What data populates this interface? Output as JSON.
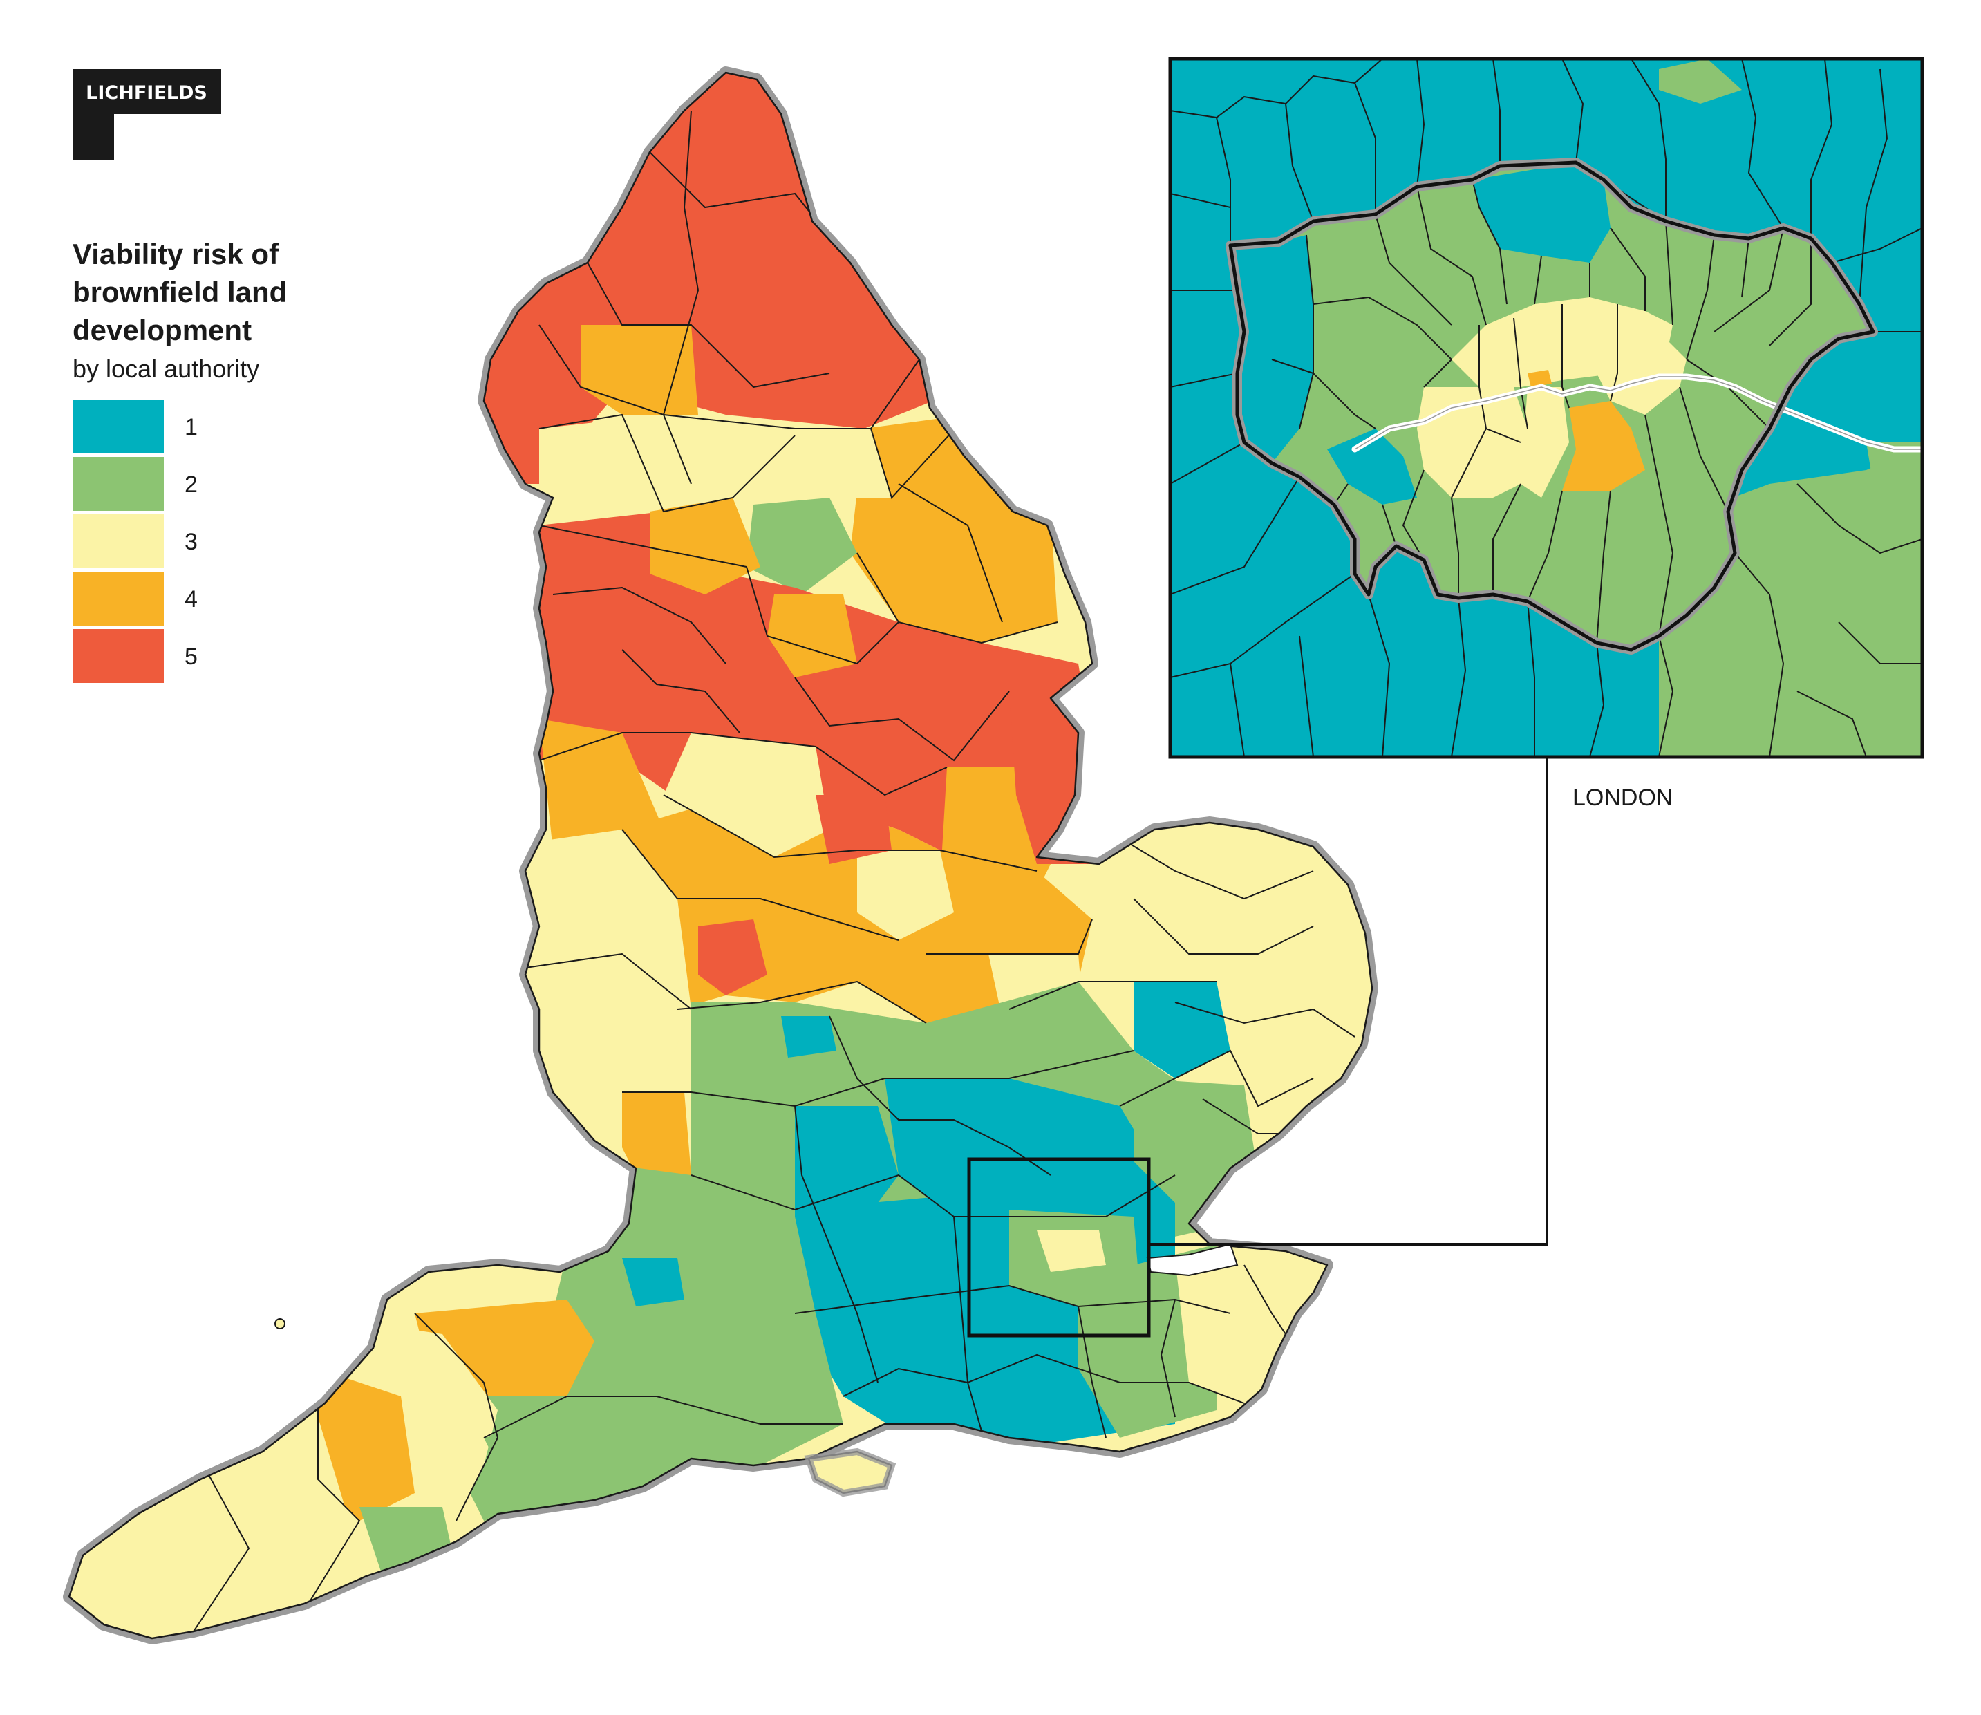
{
  "logo": {
    "text": "LICHFIELDS"
  },
  "legend": {
    "title_lines": [
      "Viability risk of",
      "brownfield land",
      "development"
    ],
    "subtitle": "by local authority",
    "items": [
      {
        "label": "1",
        "color": "#00b0be"
      },
      {
        "label": "2",
        "color": "#8cc472"
      },
      {
        "label": "3",
        "color": "#fbf3a6"
      },
      {
        "label": "4",
        "color": "#f8b226"
      },
      {
        "label": "5",
        "color": "#ee5b3c"
      }
    ]
  },
  "inset": {
    "label": "LONDON"
  },
  "colors": {
    "boundary": "#1a1a1a",
    "coast_halo": "#9a9a9a",
    "river": "#ffffff"
  }
}
